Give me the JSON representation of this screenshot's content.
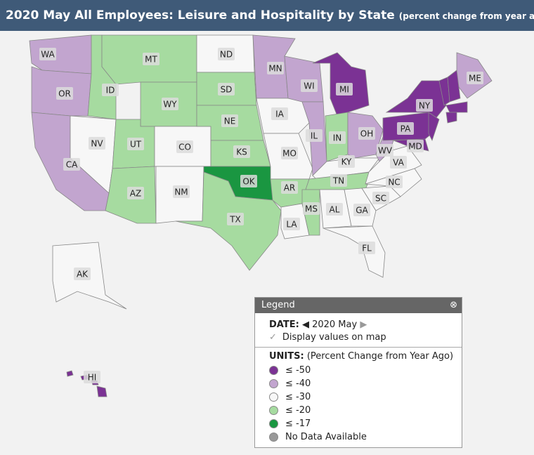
{
  "header": {
    "title": "2020 May All Employees: Leisure and Hospitality by State",
    "subtitle": "(percent change from year ago)"
  },
  "legend": {
    "title": "Legend",
    "date_label": "DATE:",
    "date": "2020 May",
    "display_values": "Display values on map",
    "units_label": "UNITS:",
    "units": "(Percent Change from Year Ago)",
    "classes": [
      {
        "label": "≤ -50",
        "color": "#7b3294"
      },
      {
        "label": "≤ -40",
        "color": "#c2a5cf"
      },
      {
        "label": "≤ -30",
        "color": "#f7f7f7"
      },
      {
        "label": "≤ -20",
        "color": "#a6dba0"
      },
      {
        "label": "≤ -17",
        "color": "#1a9641"
      },
      {
        "label": "No Data Available",
        "color": "#999999"
      }
    ]
  },
  "states": [
    {
      "label": "WA",
      "class": 1
    },
    {
      "label": "OR",
      "class": 1
    },
    {
      "label": "CA",
      "class": 1
    },
    {
      "label": "NV",
      "class": 2
    },
    {
      "label": "ID",
      "class": 3
    },
    {
      "label": "MT",
      "class": 3
    },
    {
      "label": "WY",
      "class": 3
    },
    {
      "label": "UT",
      "class": 3
    },
    {
      "label": "CO",
      "class": 2
    },
    {
      "label": "AZ",
      "class": 3
    },
    {
      "label": "NM",
      "class": 2
    },
    {
      "label": "ND",
      "class": 2
    },
    {
      "label": "SD",
      "class": 3
    },
    {
      "label": "NE",
      "class": 3
    },
    {
      "label": "KS",
      "class": 3
    },
    {
      "label": "OK",
      "class": 4
    },
    {
      "label": "TX",
      "class": 3
    },
    {
      "label": "MN",
      "class": 1
    },
    {
      "label": "IA",
      "class": 2
    },
    {
      "label": "MO",
      "class": 2
    },
    {
      "label": "AR",
      "class": 3
    },
    {
      "label": "LA",
      "class": 2
    },
    {
      "label": "WI",
      "class": 1
    },
    {
      "label": "IL",
      "class": 1
    },
    {
      "label": "MI",
      "class": 0
    },
    {
      "label": "IN",
      "class": 3
    },
    {
      "label": "OH",
      "class": 1
    },
    {
      "label": "KY",
      "class": 2
    },
    {
      "label": "TN",
      "class": 3
    },
    {
      "label": "MS",
      "class": 3
    },
    {
      "label": "AL",
      "class": 2
    },
    {
      "label": "GA",
      "class": 2
    },
    {
      "label": "FL",
      "class": 2
    },
    {
      "label": "SC",
      "class": 2
    },
    {
      "label": "NC",
      "class": 2
    },
    {
      "label": "VA",
      "class": 2
    },
    {
      "label": "WV",
      "class": 1
    },
    {
      "label": "MD",
      "class": 0
    },
    {
      "label": "PA",
      "class": 0
    },
    {
      "label": "NY",
      "class": 0
    },
    {
      "label": null,
      "class": 0
    },
    {
      "label": "ME",
      "class": 1
    },
    {
      "label": null,
      "class": 0
    },
    {
      "label": null,
      "class": 0
    },
    {
      "label": null,
      "class": 0
    },
    {
      "label": null,
      "class": 0
    },
    {
      "label": "AK",
      "class": 2
    },
    {
      "label": "HI",
      "class": 0
    }
  ]
}
